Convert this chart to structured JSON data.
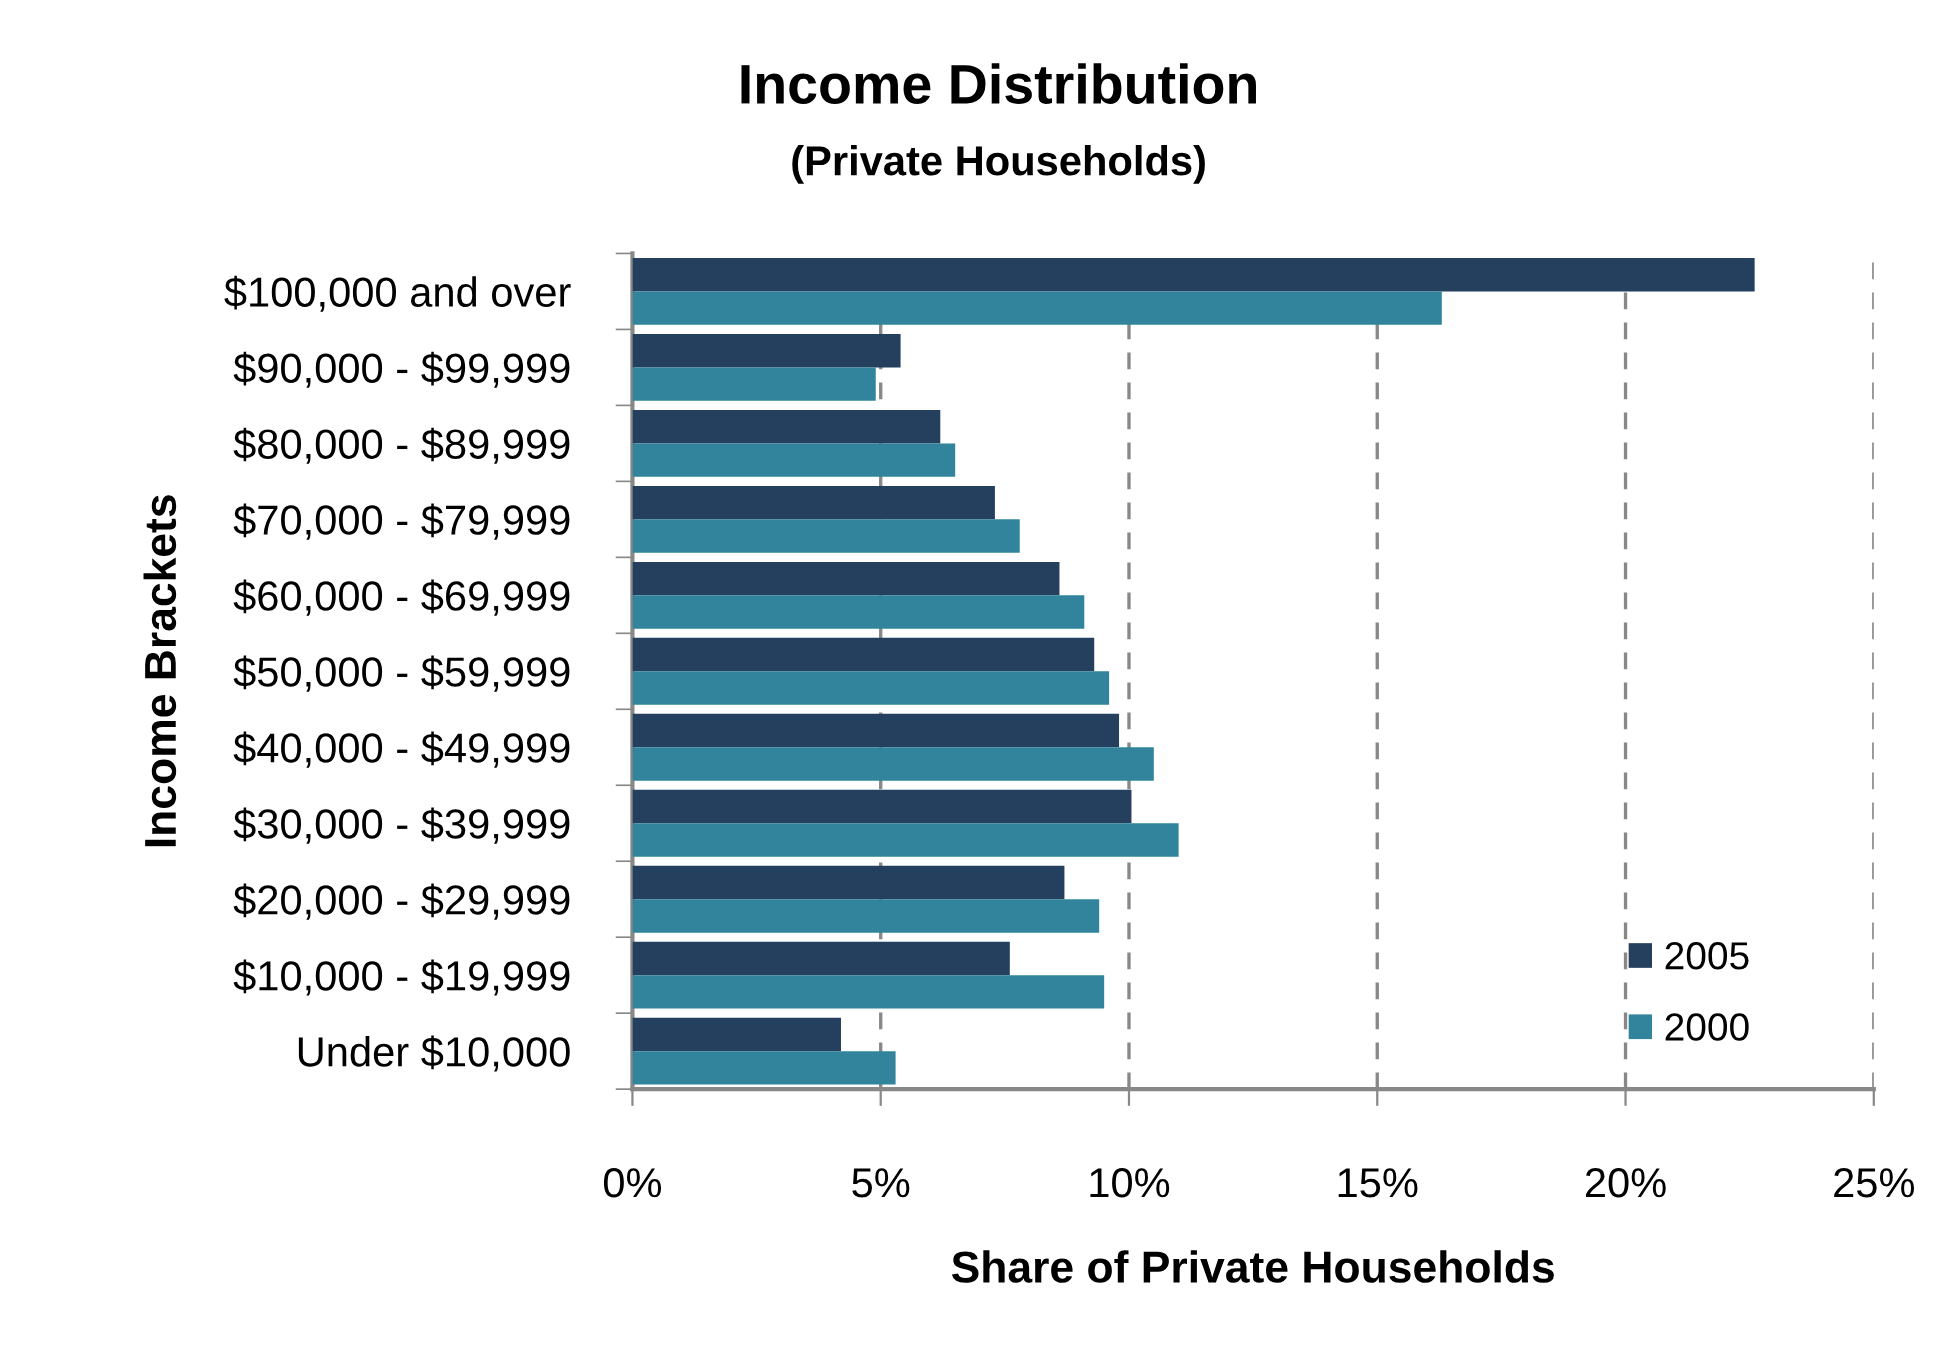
{
  "chart_data": {
    "type": "bar",
    "orientation": "horizontal",
    "title": "Income Distribution",
    "subtitle": "(Private Households)",
    "xlabel": "Share of Private Households",
    "ylabel": "Income Brackets",
    "categories": [
      "$100,000 and over",
      "$90,000 - $99,999",
      "$80,000 - $89,999",
      "$70,000 - $79,999",
      "$60,000 - $69,999",
      "$50,000 - $59,999",
      "$40,000 - $49,999",
      "$30,000 - $39,999",
      "$20,000 - $29,999",
      "$10,000 - $19,999",
      "Under $10,000"
    ],
    "series": [
      {
        "name": "2005",
        "color": "#253f5f",
        "values": [
          22.6,
          5.4,
          6.2,
          7.3,
          8.6,
          9.3,
          9.8,
          10.05,
          8.7,
          7.6,
          4.2
        ]
      },
      {
        "name": "2000",
        "color": "#31849b",
        "values": [
          16.3,
          4.9,
          6.5,
          7.8,
          9.1,
          9.6,
          10.5,
          11.0,
          9.4,
          9.5,
          5.3
        ]
      }
    ],
    "xlim": [
      0,
      25
    ],
    "xticks": [
      {
        "value": 0,
        "label": "0%"
      },
      {
        "value": 5,
        "label": "5%"
      },
      {
        "value": 10,
        "label": "10%"
      },
      {
        "value": 15,
        "label": "15%"
      },
      {
        "value": 20,
        "label": "20%"
      },
      {
        "value": 25,
        "label": "25%"
      }
    ],
    "grid": "x",
    "legend": "bottom right"
  }
}
